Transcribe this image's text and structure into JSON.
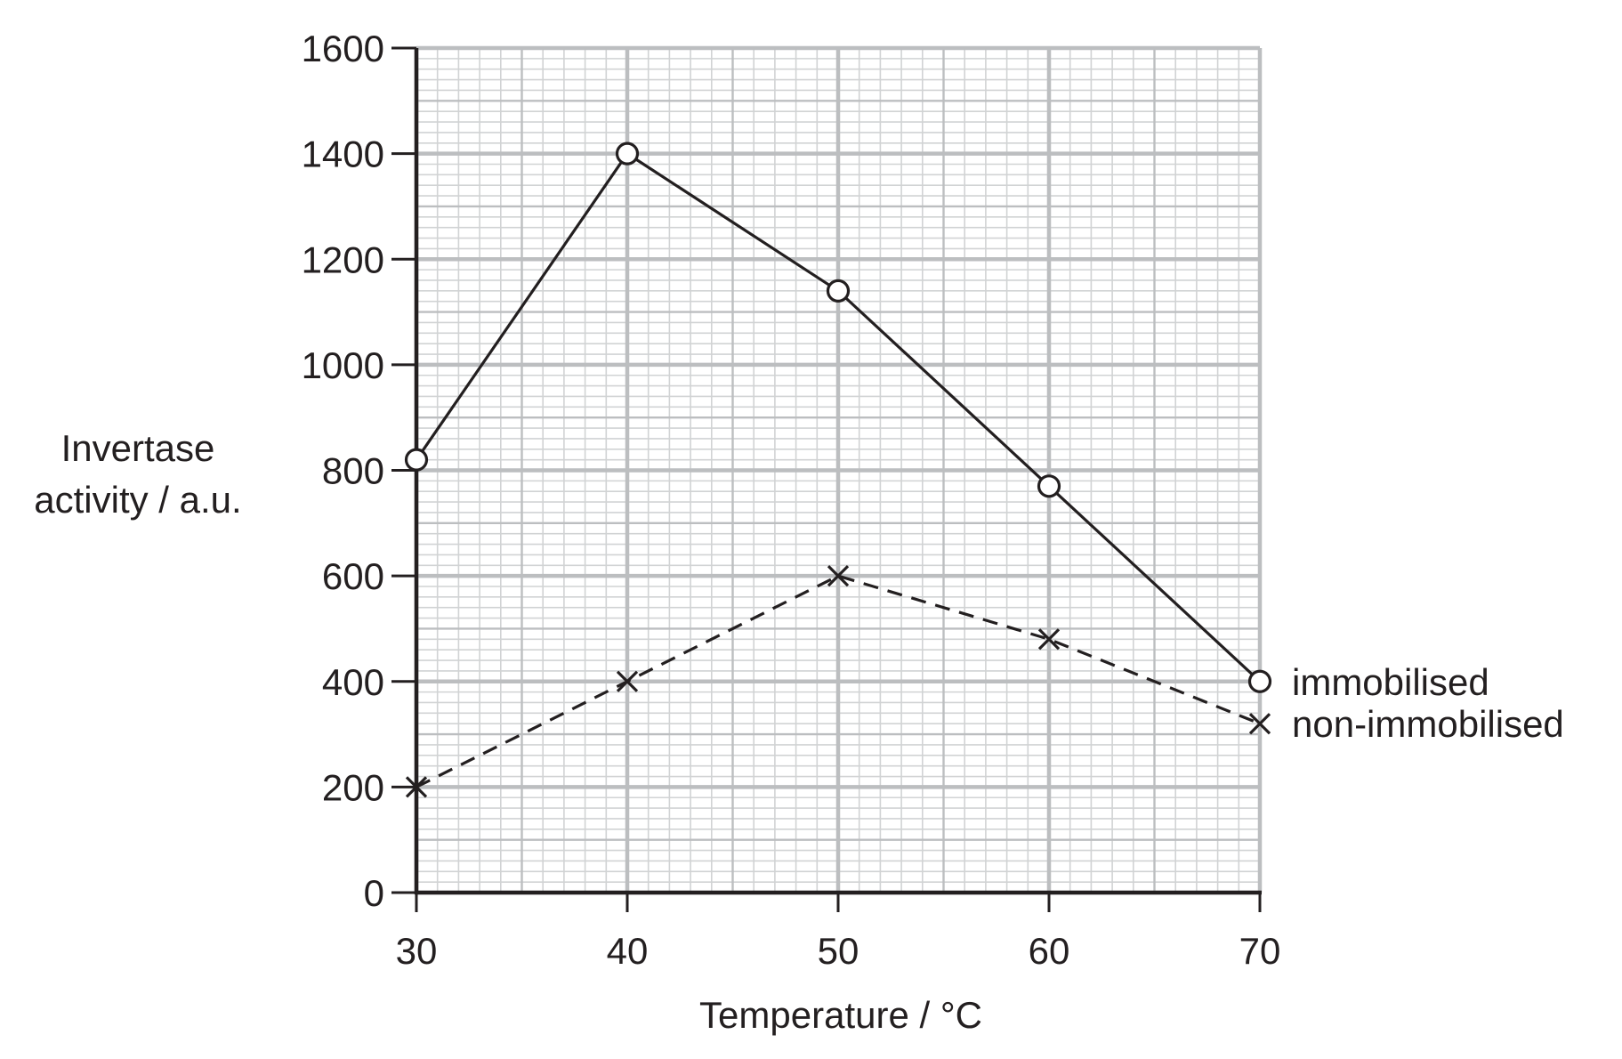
{
  "chart_data": {
    "type": "line",
    "title": "",
    "xlabel": "Temperature / °C",
    "ylabel_lines": [
      "Invertase",
      "activity / a.u."
    ],
    "xlim": [
      30,
      70
    ],
    "ylim": [
      0,
      1600
    ],
    "x_ticks": [
      30,
      40,
      50,
      60,
      70
    ],
    "y_ticks": [
      0,
      200,
      400,
      600,
      800,
      1000,
      1200,
      1400,
      1600
    ],
    "grid": true,
    "legend": "series labels at right end of lines",
    "series": [
      {
        "name": "immobilised",
        "marker": "open-circle",
        "line_style": "solid",
        "x": [
          30,
          40,
          50,
          60,
          70
        ],
        "values": [
          820,
          1400,
          1140,
          770,
          400
        ]
      },
      {
        "name": "non-immobilised",
        "marker": "cross",
        "line_style": "dashed",
        "x": [
          30,
          40,
          50,
          60,
          70
        ],
        "values": [
          200,
          400,
          600,
          480,
          320
        ]
      }
    ],
    "colors": {
      "ink": "#231f20",
      "major_grid": "#bcbec0",
      "minor_grid": "#d1d3d4"
    }
  }
}
